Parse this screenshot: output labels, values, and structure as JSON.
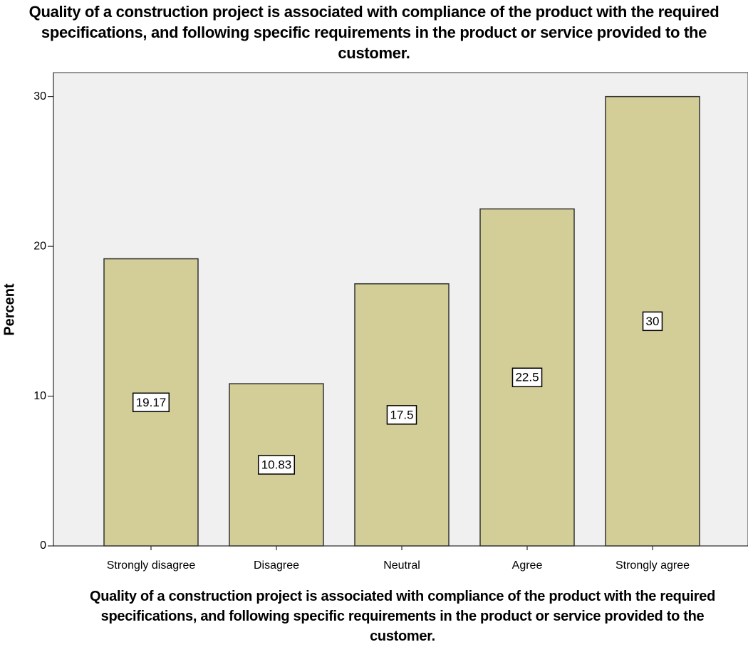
{
  "chart_data": {
    "type": "bar",
    "title": "Quality of a construction project is associated with compliance of the product with the required specifications, and following specific requirements in the product or service provided to the customer.",
    "x_label": "Quality of a construction project is associated with compliance of the product with the required specifications, and following specific requirements in the product or service provided to the customer.",
    "y_label": "Percent",
    "categories": [
      "Strongly disagree",
      "Disagree",
      "Neutral",
      "Agree",
      "Strongly agree"
    ],
    "values": [
      19.17,
      10.83,
      17.5,
      22.5,
      30
    ],
    "color": "#d3ce97",
    "ylim": [
      0,
      31.6
    ],
    "yticks": [
      0,
      10,
      20,
      30
    ],
    "grid": false
  }
}
